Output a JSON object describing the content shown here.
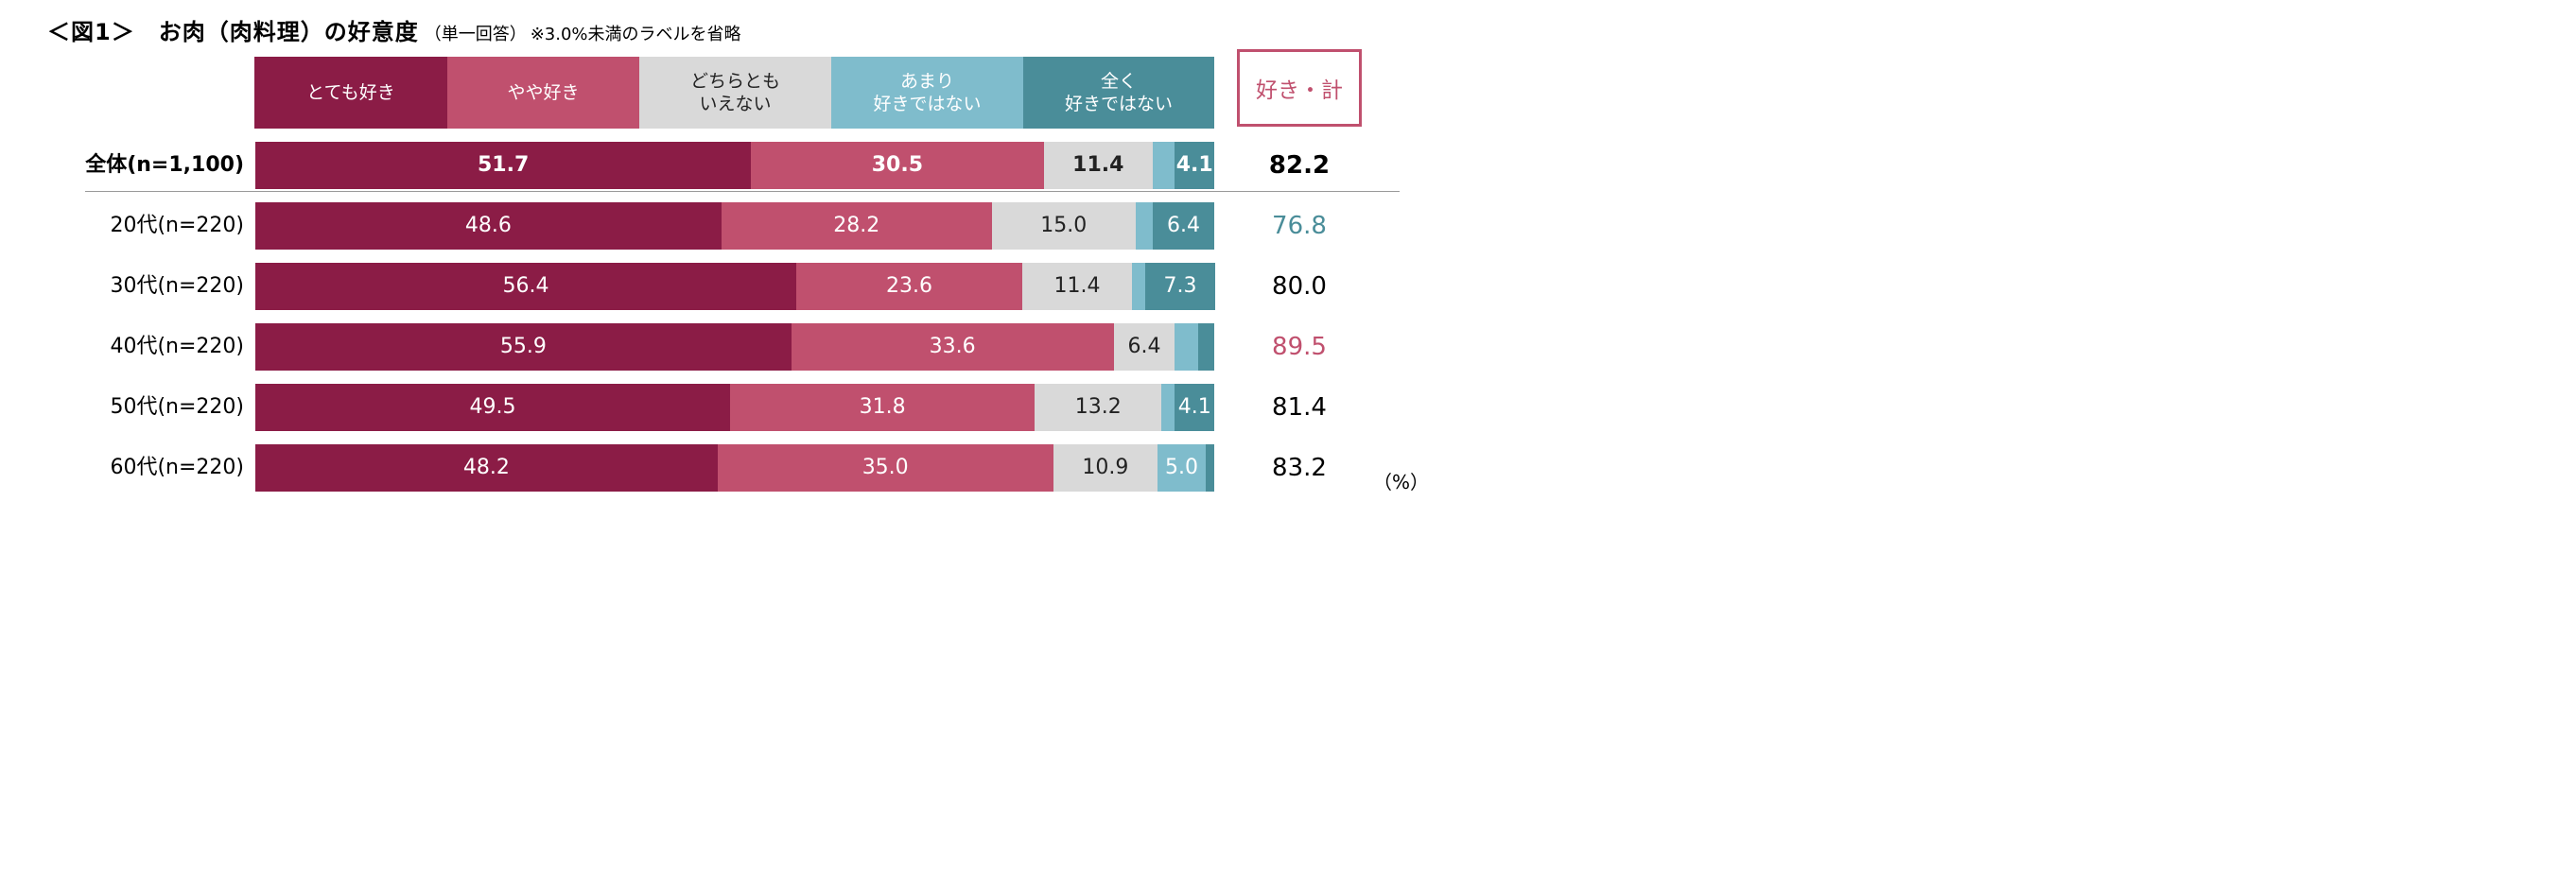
{
  "title": {
    "main": "＜図1＞　お肉（肉料理）の好意度",
    "sub": "（単一回答）",
    "note": "※3.0%未満のラベルを省略"
  },
  "legend": [
    {
      "label": "とても好き",
      "color": "#8b1c46",
      "text_color": "#ffffff"
    },
    {
      "label": "やや好き",
      "color": "#c0506e",
      "text_color": "#ffffff"
    },
    {
      "label": "どちらとも\nいえない",
      "color": "#d9d9d9",
      "text_color": "#222222"
    },
    {
      "label": "あまり\n好きではない",
      "color": "#7fbccc",
      "text_color": "#ffffff"
    },
    {
      "label": "全く\n好きではない",
      "color": "#4a8d99",
      "text_color": "#ffffff"
    }
  ],
  "total_header": "好き・計",
  "unit": "（%）",
  "chart_data": {
    "type": "bar",
    "orientation": "horizontal",
    "stacked": true,
    "xlim": [
      0,
      100
    ],
    "label_threshold": 3.0,
    "categories": [
      "全体(n=1,100)",
      "20代(n=220)",
      "30代(n=220)",
      "40代(n=220)",
      "50代(n=220)",
      "60代(n=220)"
    ],
    "series": [
      {
        "name": "とても好き",
        "values": [
          51.7,
          48.6,
          56.4,
          55.9,
          49.5,
          48.2
        ]
      },
      {
        "name": "やや好き",
        "values": [
          30.5,
          28.2,
          23.6,
          33.6,
          31.8,
          35.0
        ]
      },
      {
        "name": "どちらとも\nいえない",
        "values": [
          11.4,
          15.0,
          11.4,
          6.4,
          13.2,
          10.9
        ]
      },
      {
        "name": "あまり\n好きではない",
        "values": [
          2.3,
          1.8,
          1.4,
          2.4,
          1.4,
          5.0
        ]
      },
      {
        "name": "全く\n好きではない",
        "values": [
          4.1,
          6.4,
          7.3,
          1.7,
          4.1,
          0.9
        ]
      }
    ],
    "totals": [
      {
        "value": "82.2",
        "color": "#000000"
      },
      {
        "value": "76.8",
        "color": "#4a8d99"
      },
      {
        "value": "80.0",
        "color": "#000000"
      },
      {
        "value": "89.5",
        "color": "#c0506e"
      },
      {
        "value": "81.4",
        "color": "#000000"
      },
      {
        "value": "83.2",
        "color": "#000000"
      }
    ],
    "bold_rows": [
      0
    ]
  }
}
